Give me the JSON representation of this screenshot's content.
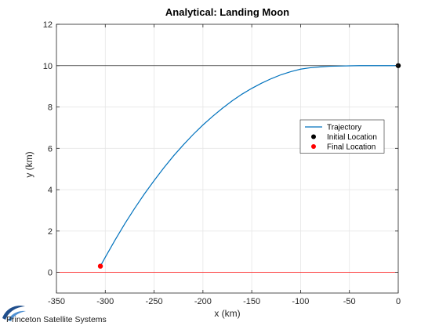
{
  "chart_data": {
    "type": "line",
    "title": "Analytical: Landing Moon",
    "xlabel": "x (km)",
    "ylabel": "y (km)",
    "xlim": [
      -350,
      0
    ],
    "ylim": [
      -1,
      12
    ],
    "xticks": [
      -350,
      -300,
      -250,
      -200,
      -150,
      -100,
      -50,
      0
    ],
    "yticks": [
      0,
      2,
      4,
      6,
      8,
      10,
      12
    ],
    "grid": true,
    "legend_position": "right-middle",
    "series": [
      {
        "name": "Trajectory",
        "kind": "line",
        "color": "#0072BD",
        "x": [
          -305,
          -300,
          -290,
          -280,
          -270,
          -260,
          -250,
          -240,
          -230,
          -220,
          -210,
          -200,
          -190,
          -180,
          -170,
          -160,
          -150,
          -140,
          -130,
          -120,
          -110,
          -100,
          -90,
          -80,
          -70,
          -60,
          -50,
          -40,
          -30,
          -20,
          -10,
          0
        ],
        "y": [
          0.3,
          0.73,
          1.56,
          2.35,
          3.09,
          3.79,
          4.44,
          5.06,
          5.64,
          6.17,
          6.67,
          7.13,
          7.55,
          7.94,
          8.3,
          8.62,
          8.9,
          9.15,
          9.37,
          9.56,
          9.71,
          9.83,
          9.9,
          9.94,
          9.97,
          9.98,
          9.99,
          10.0,
          10.0,
          10.0,
          10.0,
          10.0
        ]
      },
      {
        "name": "Initial Location",
        "kind": "point",
        "color": "#000000",
        "x": [
          0
        ],
        "y": [
          10
        ]
      },
      {
        "name": "Final Location",
        "kind": "point",
        "color": "#FF0000",
        "x": [
          -305
        ],
        "y": [
          0.3
        ]
      }
    ],
    "reference_lines": [
      {
        "axis": "y",
        "value": 10,
        "color": "#000000"
      },
      {
        "axis": "y",
        "value": 0,
        "color": "#FF0000"
      }
    ]
  },
  "branding": {
    "logo_text": "Princeton Satellite Systems",
    "logo_color": "#1F4E8C"
  },
  "theme": {
    "axis_color": "#262626",
    "grid_color": "#e6e6e6",
    "background": "#ffffff"
  }
}
